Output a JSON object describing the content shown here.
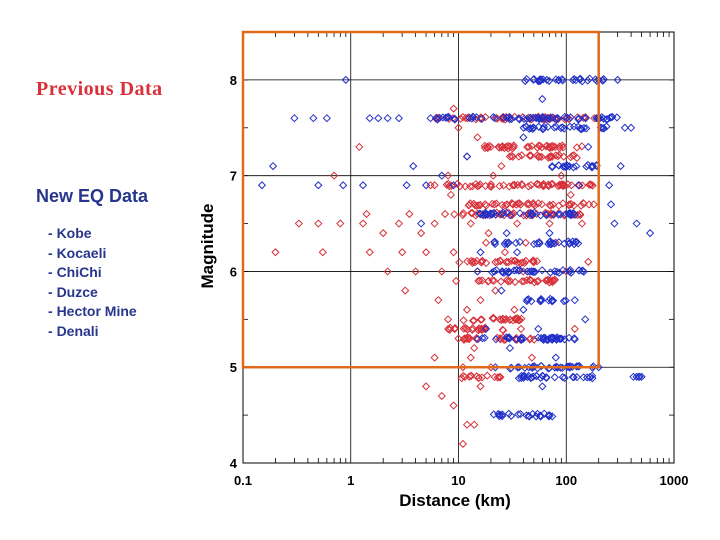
{
  "legend": {
    "previous_label": "Previous Data",
    "new_label": "New EQ Data",
    "new_events": [
      "Kobe",
      "Kocaeli",
      "ChiChi",
      "Duzce",
      "Hector Mine",
      "Denali"
    ]
  },
  "colors": {
    "previous": "#d8313a",
    "new": "#2130c8",
    "box": "#e06a1a",
    "grid": "#000000"
  },
  "chart_data": {
    "type": "scatter",
    "title": "",
    "xlabel": "Distance (km)",
    "ylabel": "Magnitude",
    "xscale": "log",
    "xlim": [
      0.1,
      1000
    ],
    "ylim": [
      4,
      8.5
    ],
    "xticks": [
      0.1,
      1,
      10,
      100,
      1000
    ],
    "xtick_labels": [
      "0.1",
      "1",
      "10",
      "100",
      "1000"
    ],
    "yticks": [
      4,
      5,
      6,
      7,
      8
    ],
    "ytick_labels": [
      "4",
      "5",
      "6",
      "7",
      "8"
    ],
    "grid": true,
    "marker": "diamond",
    "annotation_box": {
      "x_range": [
        0.1,
        200
      ],
      "y_range": [
        5,
        8.5
      ]
    },
    "series": [
      {
        "name": "Previous Data",
        "color_key": "previous",
        "points": [
          [
            0.2,
            6.2
          ],
          [
            0.33,
            6.5
          ],
          [
            0.5,
            6.5
          ],
          [
            0.55,
            6.2
          ],
          [
            0.8,
            6.5
          ],
          [
            1.3,
            6.5
          ],
          [
            1.5,
            6.2
          ],
          [
            1.2,
            7.3
          ],
          [
            0.7,
            7.0
          ],
          [
            1.4,
            6.6
          ],
          [
            2.0,
            6.4
          ],
          [
            2.2,
            6.0
          ],
          [
            2.8,
            6.5
          ],
          [
            3.0,
            6.2
          ],
          [
            3.5,
            6.6
          ],
          [
            3.2,
            5.8
          ],
          [
            4.0,
            6.0
          ],
          [
            4.5,
            6.4
          ],
          [
            5.0,
            6.2
          ],
          [
            5.5,
            6.9
          ],
          [
            6.0,
            6.5
          ],
          [
            6.5,
            5.7
          ],
          [
            7.0,
            6.0
          ],
          [
            7.5,
            6.6
          ],
          [
            8.0,
            5.5
          ],
          [
            8.5,
            6.8
          ],
          [
            9.0,
            6.2
          ],
          [
            9.5,
            5.9
          ],
          [
            10,
            5.3
          ],
          [
            11,
            5.0
          ],
          [
            12,
            5.6
          ],
          [
            13,
            6.5
          ],
          [
            14,
            5.2
          ],
          [
            15,
            6.0
          ],
          [
            16,
            4.8
          ],
          [
            17,
            5.4
          ],
          [
            18,
            6.3
          ],
          [
            20,
            5.0
          ],
          [
            22,
            5.8
          ],
          [
            24,
            6.6
          ],
          [
            26,
            5.5
          ],
          [
            28,
            6.1
          ],
          [
            30,
            7.2
          ],
          [
            32,
            6.9
          ],
          [
            35,
            6.5
          ],
          [
            38,
            5.4
          ],
          [
            40,
            6.0
          ],
          [
            45,
            7.3
          ],
          [
            50,
            6.7
          ],
          [
            55,
            5.9
          ],
          [
            60,
            6.9
          ],
          [
            70,
            6.5
          ],
          [
            80,
            6.3
          ],
          [
            90,
            7.0
          ],
          [
            100,
            6.0
          ],
          [
            110,
            6.8
          ],
          [
            120,
            5.4
          ],
          [
            140,
            6.5
          ],
          [
            160,
            6.1
          ],
          [
            180,
            6.7
          ],
          [
            12,
            4.4
          ],
          [
            14,
            4.4
          ],
          [
            7,
            4.7
          ],
          [
            5,
            4.8
          ],
          [
            6,
            5.1
          ],
          [
            9,
            7.7
          ],
          [
            10,
            7.5
          ],
          [
            12,
            7.2
          ],
          [
            15,
            7.4
          ],
          [
            20,
            7.3
          ],
          [
            25,
            7.1
          ],
          [
            8,
            7.0
          ],
          [
            6,
            6.9
          ],
          [
            11,
            4.2
          ],
          [
            9,
            4.6
          ],
          [
            13,
            5.1
          ],
          [
            16,
            5.7
          ],
          [
            19,
            6.4
          ],
          [
            21,
            7.0
          ],
          [
            27,
            6.2
          ],
          [
            33,
            5.6
          ],
          [
            42,
            6.3
          ],
          [
            48,
            5.1
          ],
          [
            65,
            6.6
          ]
        ],
        "clusters": [
          {
            "m": 7.6,
            "from": 6,
            "to": 200
          },
          {
            "m": 7.3,
            "from": 14,
            "to": 150
          },
          {
            "m": 7.2,
            "from": 30,
            "to": 130
          },
          {
            "m": 6.9,
            "from": 7,
            "to": 180
          },
          {
            "m": 6.7,
            "from": 12,
            "to": 180
          },
          {
            "m": 6.6,
            "from": 9,
            "to": 150
          },
          {
            "m": 6.1,
            "from": 10,
            "to": 60
          },
          {
            "m": 5.9,
            "from": 13,
            "to": 80
          },
          {
            "m": 5.5,
            "from": 10,
            "to": 40
          },
          {
            "m": 5.4,
            "from": 8,
            "to": 30
          },
          {
            "m": 5.3,
            "from": 11,
            "to": 60
          },
          {
            "m": 4.9,
            "from": 10,
            "to": 25
          }
        ]
      },
      {
        "name": "New EQ Data",
        "color_key": "new",
        "points": [
          [
            0.15,
            6.9
          ],
          [
            0.19,
            7.1
          ],
          [
            0.3,
            7.6
          ],
          [
            0.45,
            7.6
          ],
          [
            0.6,
            7.6
          ],
          [
            0.85,
            6.9
          ],
          [
            0.9,
            8.0
          ],
          [
            1.3,
            6.9
          ],
          [
            1.8,
            7.6
          ],
          [
            2.2,
            7.6
          ],
          [
            2.8,
            7.6
          ],
          [
            3.3,
            6.9
          ],
          [
            3.8,
            7.1
          ],
          [
            1.5,
            7.6
          ],
          [
            0.5,
            6.9
          ],
          [
            4.5,
            6.5
          ],
          [
            5.0,
            6.9
          ],
          [
            5.5,
            7.6
          ],
          [
            350,
            7.5
          ],
          [
            400,
            7.5
          ],
          [
            600,
            6.4
          ],
          [
            450,
            6.5
          ],
          [
            250,
            6.9
          ],
          [
            300,
            8.0
          ],
          [
            320,
            7.1
          ],
          [
            280,
            6.5
          ],
          [
            260,
            6.7
          ],
          [
            450,
            4.9
          ],
          [
            480,
            4.9
          ],
          [
            500,
            4.9
          ],
          [
            420,
            4.9
          ],
          [
            470,
            4.9
          ],
          [
            200,
            5.0
          ],
          [
            150,
            5.5
          ],
          [
            120,
            5.7
          ],
          [
            90,
            5.3
          ],
          [
            80,
            5.1
          ],
          [
            30,
            5.2
          ],
          [
            22,
            5.0
          ],
          [
            18,
            5.4
          ],
          [
            60,
            4.8
          ],
          [
            40,
            5.6
          ],
          [
            25,
            5.8
          ],
          [
            15,
            6.0
          ],
          [
            35,
            6.2
          ],
          [
            50,
            6.0
          ],
          [
            70,
            6.4
          ],
          [
            100,
            6.6
          ],
          [
            130,
            6.9
          ],
          [
            160,
            7.3
          ],
          [
            190,
            7.6
          ],
          [
            60,
            7.8
          ],
          [
            85,
            8.0
          ],
          [
            200,
            8.0
          ],
          [
            50,
            7.5
          ],
          [
            40,
            7.4
          ],
          [
            28,
            6.4
          ],
          [
            20,
            6.6
          ],
          [
            16,
            6.2
          ],
          [
            12,
            7.2
          ],
          [
            9,
            6.9
          ],
          [
            7,
            7.0
          ],
          [
            45,
            5.0
          ],
          [
            55,
            5.4
          ]
        ],
        "clusters": [
          {
            "m": 8.0,
            "from": 40,
            "to": 250
          },
          {
            "m": 7.6,
            "from": 6,
            "to": 300
          },
          {
            "m": 7.5,
            "from": 40,
            "to": 250
          },
          {
            "m": 7.1,
            "from": 60,
            "to": 200
          },
          {
            "m": 6.6,
            "from": 15,
            "to": 130
          },
          {
            "m": 6.3,
            "from": 20,
            "to": 150
          },
          {
            "m": 6.0,
            "from": 20,
            "to": 150
          },
          {
            "m": 5.7,
            "from": 40,
            "to": 100
          },
          {
            "m": 5.3,
            "from": 13,
            "to": 120
          },
          {
            "m": 5.0,
            "from": 30,
            "to": 180
          },
          {
            "m": 4.9,
            "from": 30,
            "to": 180
          },
          {
            "m": 4.5,
            "from": 20,
            "to": 80
          }
        ]
      }
    ]
  }
}
